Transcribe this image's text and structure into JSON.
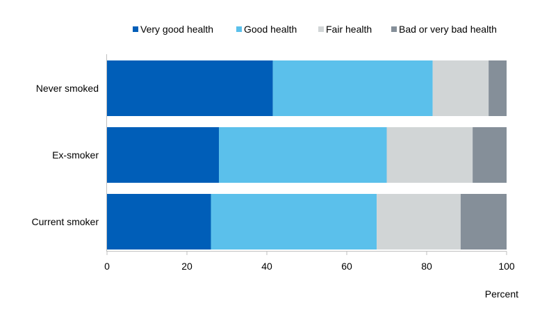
{
  "chart_data": {
    "type": "bar",
    "orientation": "horizontal",
    "stacked": true,
    "categories": [
      "Never smoked",
      "Ex-smoker",
      "Current smoker"
    ],
    "series": [
      {
        "name": "Very good health",
        "color": "#005EB8",
        "values": [
          41.5,
          28.0,
          26.0
        ]
      },
      {
        "name": "Good health",
        "color": "#5BC0EB",
        "values": [
          40.0,
          42.0,
          41.5
        ]
      },
      {
        "name": "Fair health",
        "color": "#D1D5D6",
        "values": [
          14.0,
          21.5,
          21.0
        ]
      },
      {
        "name": "Bad or very bad health",
        "color": "#858F99",
        "values": [
          4.5,
          8.5,
          11.5
        ]
      }
    ],
    "xlim": [
      0,
      100
    ],
    "xticks": [
      0,
      20,
      40,
      60,
      80,
      100
    ],
    "xlabel": "Percent",
    "ylabel": "",
    "title": "",
    "grid": false,
    "legend_position": "top"
  }
}
